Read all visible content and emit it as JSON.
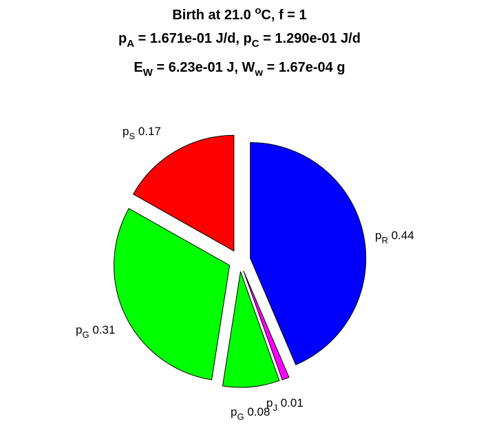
{
  "title": {
    "line1": {
      "pre": "Birth at 21.0 ",
      "deg": "o",
      "post": "C, f = 1"
    },
    "line2": {
      "a_sym": "p",
      "a_sub": "A",
      "a_val": " = 1.671e-01 J/d, ",
      "c_sym": "p",
      "c_sub": "C",
      "c_val": " = 1.290e-01 J/d"
    },
    "line3": {
      "e_sym": "E",
      "e_sub": "W",
      "e_val": " = 6.23e-01 J, ",
      "w_sym": "W",
      "w_sub": "w",
      "w_val": " = 1.67e-04 g"
    }
  },
  "chart_data": {
    "type": "pie",
    "exploded": true,
    "slices": [
      {
        "sym": "p",
        "sub": "R",
        "value": 0.44,
        "label_value": "0.44",
        "color": "#0000ff"
      },
      {
        "sym": "p",
        "sub": "J",
        "value": 0.01,
        "label_value": "0.01",
        "color": "#ff00ff"
      },
      {
        "sym": "p",
        "sub": "G",
        "value": 0.08,
        "label_value": "0.08",
        "color": "#00ff00"
      },
      {
        "sym": "p",
        "sub": "G",
        "value": 0.31,
        "label_value": "0.31",
        "color": "#00ff00"
      },
      {
        "sym": "p",
        "sub": "S",
        "value": 0.17,
        "label_value": "0.17",
        "color": "#ff0000"
      }
    ]
  }
}
